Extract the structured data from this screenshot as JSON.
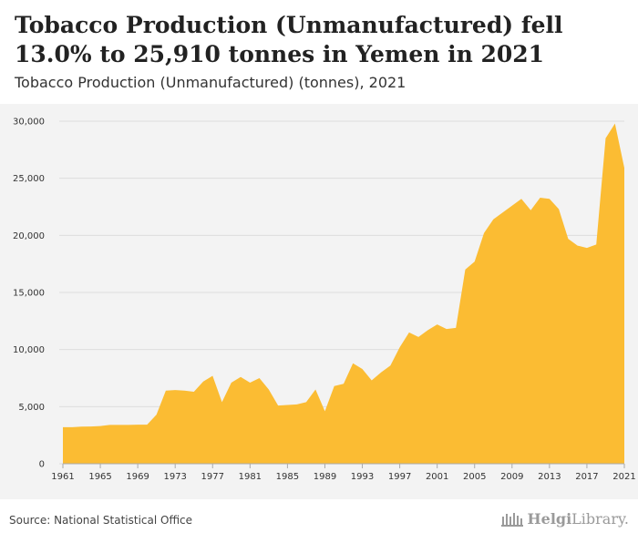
{
  "header": {
    "title": "Tobacco Production (Unmanufactured) fell 13.0% to 25,910 tonnes in Yemen in 2021",
    "subtitle": "Tobacco Production (Unmanufactured) (tonnes), 2021"
  },
  "footer": {
    "source": "Source: National Statistical Office",
    "logo_text_bold": "Helgi",
    "logo_text_rest": "Library."
  },
  "colors": {
    "area": "#fbbc33",
    "grid": "#dddddd",
    "panel": "#f3f3f3"
  },
  "chart_data": {
    "type": "area",
    "x": [
      1961,
      1962,
      1963,
      1964,
      1965,
      1966,
      1967,
      1968,
      1969,
      1970,
      1971,
      1972,
      1973,
      1974,
      1975,
      1976,
      1977,
      1978,
      1979,
      1980,
      1981,
      1982,
      1983,
      1984,
      1985,
      1986,
      1987,
      1988,
      1989,
      1990,
      1991,
      1992,
      1993,
      1994,
      1995,
      1996,
      1997,
      1998,
      1999,
      2000,
      2001,
      2002,
      2003,
      2004,
      2005,
      2006,
      2007,
      2008,
      2009,
      2010,
      2011,
      2012,
      2013,
      2014,
      2015,
      2016,
      2017,
      2018,
      2019,
      2020,
      2021
    ],
    "values": [
      3200,
      3200,
      3250,
      3260,
      3300,
      3400,
      3400,
      3400,
      3420,
      3420,
      4300,
      6400,
      6450,
      6400,
      6300,
      7200,
      7700,
      5400,
      7100,
      7600,
      7100,
      7500,
      6500,
      5100,
      5150,
      5200,
      5400,
      6500,
      4600,
      6800,
      7000,
      8800,
      8300,
      7300,
      8000,
      8600,
      10200,
      11500,
      11100,
      11700,
      12200,
      11800,
      11900,
      17000,
      17700,
      20200,
      21400,
      22000,
      22600,
      23200,
      22200,
      23300,
      23200,
      22300,
      19700,
      19100,
      18900,
      19200,
      28500,
      29790,
      25910
    ],
    "xticks": [
      1961,
      1965,
      1969,
      1973,
      1977,
      1981,
      1985,
      1989,
      1993,
      1997,
      2001,
      2005,
      2009,
      2013,
      2017,
      2021
    ],
    "yticks": [
      0,
      5000,
      10000,
      15000,
      20000,
      25000,
      30000
    ],
    "ytick_labels": [
      "0",
      "5,000",
      "10,000",
      "15,000",
      "20,000",
      "25,000",
      "30,000"
    ],
    "ylim": [
      0,
      30000
    ],
    "xlim": [
      1961,
      2021
    ],
    "grid": "horizontal"
  }
}
